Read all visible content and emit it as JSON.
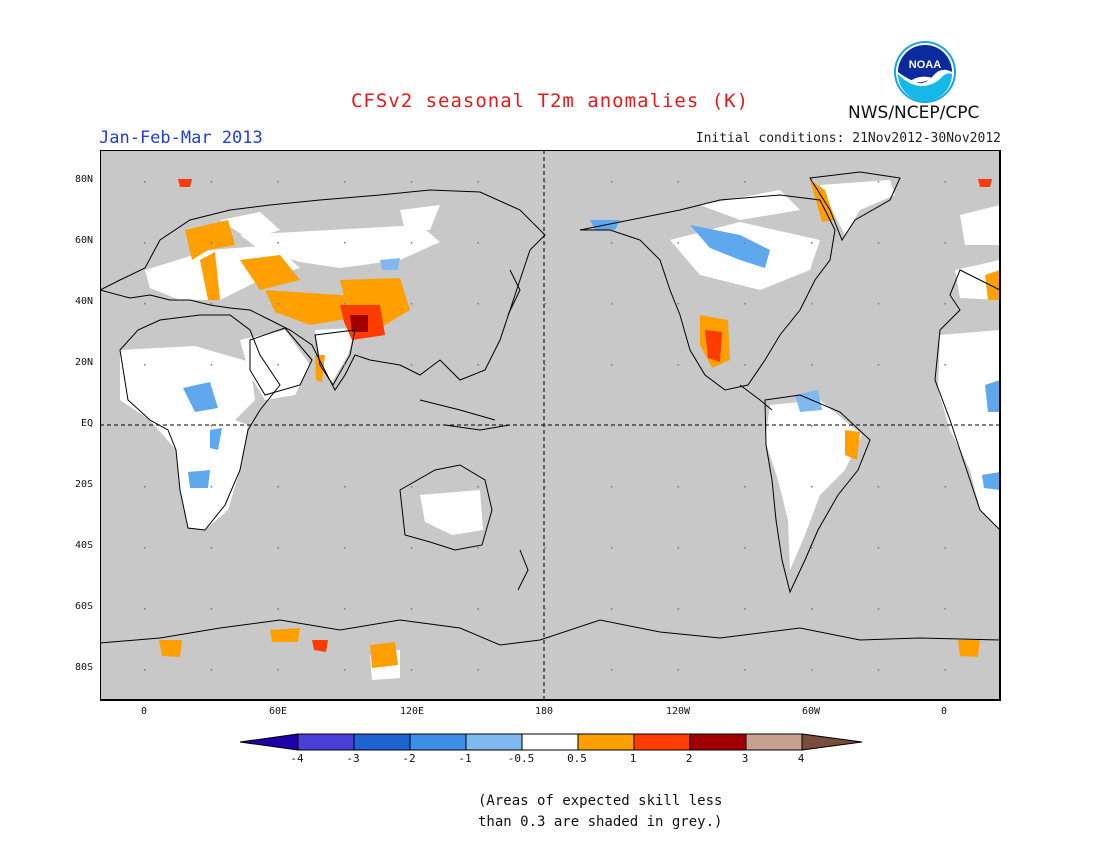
{
  "header": {
    "title": "CFSv2 seasonal T2m anomalies (K)",
    "period": "Jan-Feb-Mar 2013",
    "initial_conditions": "Initial conditions: 21Nov2012-30Nov2012",
    "agency": "NWS/NCEP/CPC",
    "logo_text": "NOAA"
  },
  "map": {
    "projection": "equirectangular",
    "lon_range": [
      -20,
      380
    ],
    "lat_range": [
      -90,
      90
    ],
    "background_skill_less_color": "#c8c8c8",
    "lat_labels": [
      "80N",
      "60N",
      "40N",
      "20N",
      "EQ",
      "20S",
      "40S",
      "60S",
      "80S"
    ],
    "lon_labels": [
      "0",
      "60E",
      "120E",
      "180",
      "120W",
      "60W",
      "0"
    ],
    "dashed_reference_lines": [
      "EQ",
      "180"
    ]
  },
  "colorbar": {
    "labels": [
      "-4",
      "-3",
      "-2",
      "-1",
      "-0.5",
      "0.5",
      "1",
      "2",
      "3",
      "4"
    ],
    "colors": [
      "#1f00a6",
      "#4a3fd6",
      "#1e64d0",
      "#3c8ee6",
      "#80b8f0",
      "#ffffff",
      "#ffa000",
      "#ff3c00",
      "#a00000",
      "#c8a090",
      "#7a4c3c"
    ]
  },
  "footnote": {
    "line1": "(Areas of expected skill less",
    "line2": "than 0.3 are shaded in grey.)"
  }
}
